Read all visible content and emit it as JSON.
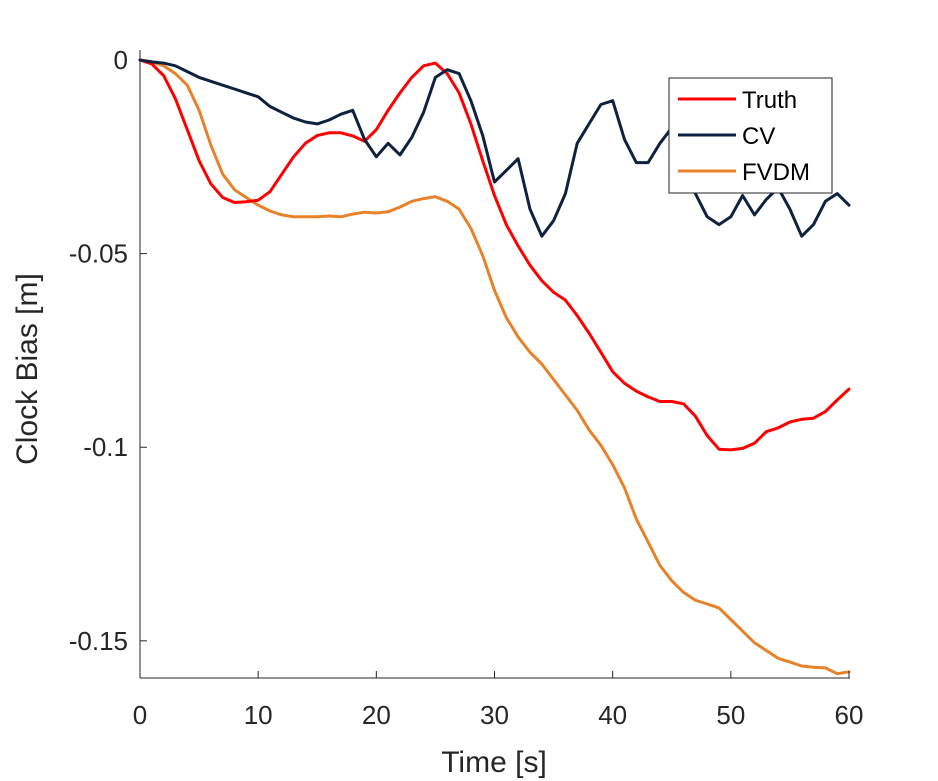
{
  "chart_data": {
    "type": "line",
    "title": "",
    "xlabel": "Time [s]",
    "ylabel": "Clock Bias [m]",
    "xlim": [
      0,
      60
    ],
    "ylim": [
      -0.16,
      0
    ],
    "xticks": [
      0,
      10,
      20,
      30,
      40,
      50,
      60
    ],
    "xtick_labels": [
      "0",
      "10",
      "20",
      "30",
      "40",
      "50",
      "60"
    ],
    "yticks": [
      0,
      -0.05,
      -0.1,
      -0.15
    ],
    "ytick_labels": [
      "0",
      "-0.05",
      "-0.1",
      "-0.15"
    ],
    "grid": false,
    "legend_position": "top-right",
    "series": [
      {
        "name": "Truth",
        "color": "#ff0000",
        "x": [
          0,
          1,
          2,
          3,
          4,
          5,
          6,
          7,
          8,
          9,
          10,
          11,
          12,
          13,
          14,
          15,
          16,
          17,
          18,
          19,
          20,
          21,
          22,
          23,
          24,
          25,
          26,
          27,
          28,
          29,
          30,
          31,
          32,
          33,
          34,
          35,
          36,
          37,
          38,
          39,
          40,
          41,
          42,
          43,
          44,
          45,
          46,
          47,
          48,
          49,
          50,
          51,
          52,
          53,
          54,
          55,
          56,
          57,
          58,
          59,
          60
        ],
        "y": [
          0,
          -0.001,
          -0.004,
          -0.01,
          -0.018,
          -0.026,
          -0.032,
          -0.0355,
          -0.0368,
          -0.0366,
          -0.0362,
          -0.034,
          -0.0295,
          -0.025,
          -0.0215,
          -0.0195,
          -0.0188,
          -0.0188,
          -0.0196,
          -0.021,
          -0.018,
          -0.013,
          -0.0085,
          -0.0045,
          -0.0015,
          -0.0008,
          -0.0035,
          -0.0085,
          -0.0165,
          -0.026,
          -0.035,
          -0.0425,
          -0.048,
          -0.053,
          -0.057,
          -0.06,
          -0.062,
          -0.066,
          -0.0705,
          -0.0755,
          -0.0805,
          -0.0835,
          -0.0855,
          -0.087,
          -0.0882,
          -0.0882,
          -0.0888,
          -0.092,
          -0.097,
          -0.1005,
          -0.1007,
          -0.1003,
          -0.099,
          -0.096,
          -0.095,
          -0.0935,
          -0.0928,
          -0.0925,
          -0.0908,
          -0.0878,
          -0.085
        ]
      },
      {
        "name": "CV",
        "color": "#0e2240",
        "x": [
          0,
          1,
          2,
          3,
          4,
          5,
          6,
          7,
          8,
          9,
          10,
          11,
          12,
          13,
          14,
          15,
          16,
          17,
          18,
          19,
          20,
          21,
          22,
          23,
          24,
          25,
          26,
          27,
          28,
          29,
          30,
          31,
          32,
          33,
          34,
          35,
          36,
          37,
          38,
          39,
          40,
          41,
          42,
          43,
          44,
          45,
          46,
          47,
          48,
          49,
          50,
          51,
          52,
          53,
          54,
          55,
          56,
          57,
          58,
          59,
          60
        ],
        "y": [
          0,
          -0.0005,
          -0.0008,
          -0.0015,
          -0.003,
          -0.0045,
          -0.0055,
          -0.0065,
          -0.0075,
          -0.0085,
          -0.0095,
          -0.012,
          -0.0135,
          -0.015,
          -0.016,
          -0.0165,
          -0.0155,
          -0.014,
          -0.013,
          -0.0205,
          -0.025,
          -0.0215,
          -0.0245,
          -0.02,
          -0.0135,
          -0.0045,
          -0.0025,
          -0.0035,
          -0.0105,
          -0.0195,
          -0.0315,
          -0.0285,
          -0.0255,
          -0.0385,
          -0.0455,
          -0.0415,
          -0.0345,
          -0.0215,
          -0.0165,
          -0.0115,
          -0.0105,
          -0.0205,
          -0.0265,
          -0.0265,
          -0.0215,
          -0.0175,
          -0.0255,
          -0.0345,
          -0.0405,
          -0.0425,
          -0.0405,
          -0.035,
          -0.04,
          -0.036,
          -0.033,
          -0.0385,
          -0.0455,
          -0.0425,
          -0.0365,
          -0.0345,
          -0.0375
        ]
      },
      {
        "name": "FVDM",
        "color": "#e8822a",
        "x": [
          0,
          1,
          2,
          3,
          4,
          5,
          6,
          7,
          8,
          9,
          10,
          11,
          12,
          13,
          14,
          15,
          16,
          17,
          18,
          19,
          20,
          21,
          22,
          23,
          24,
          25,
          26,
          27,
          28,
          29,
          30,
          31,
          32,
          33,
          34,
          35,
          36,
          37,
          38,
          39,
          40,
          41,
          42,
          43,
          44,
          45,
          46,
          47,
          48,
          49,
          50,
          51,
          52,
          53,
          54,
          55,
          56,
          57,
          58,
          59,
          60
        ],
        "y": [
          0,
          -0.0005,
          -0.0015,
          -0.0035,
          -0.0065,
          -0.013,
          -0.022,
          -0.0295,
          -0.0335,
          -0.0355,
          -0.0375,
          -0.039,
          -0.04,
          -0.0405,
          -0.0405,
          -0.0405,
          -0.0403,
          -0.0405,
          -0.0398,
          -0.0393,
          -0.0395,
          -0.0392,
          -0.038,
          -0.0365,
          -0.0358,
          -0.0353,
          -0.0365,
          -0.0385,
          -0.0435,
          -0.0505,
          -0.0595,
          -0.0665,
          -0.0715,
          -0.0755,
          -0.0785,
          -0.0825,
          -0.0865,
          -0.0905,
          -0.0955,
          -0.0995,
          -0.1045,
          -0.1105,
          -0.1185,
          -0.1245,
          -0.1305,
          -0.1345,
          -0.1375,
          -0.1395,
          -0.1405,
          -0.1415,
          -0.1445,
          -0.1475,
          -0.1505,
          -0.1525,
          -0.1545,
          -0.1555,
          -0.1565,
          -0.1568,
          -0.157,
          -0.1585,
          -0.158
        ]
      }
    ]
  }
}
